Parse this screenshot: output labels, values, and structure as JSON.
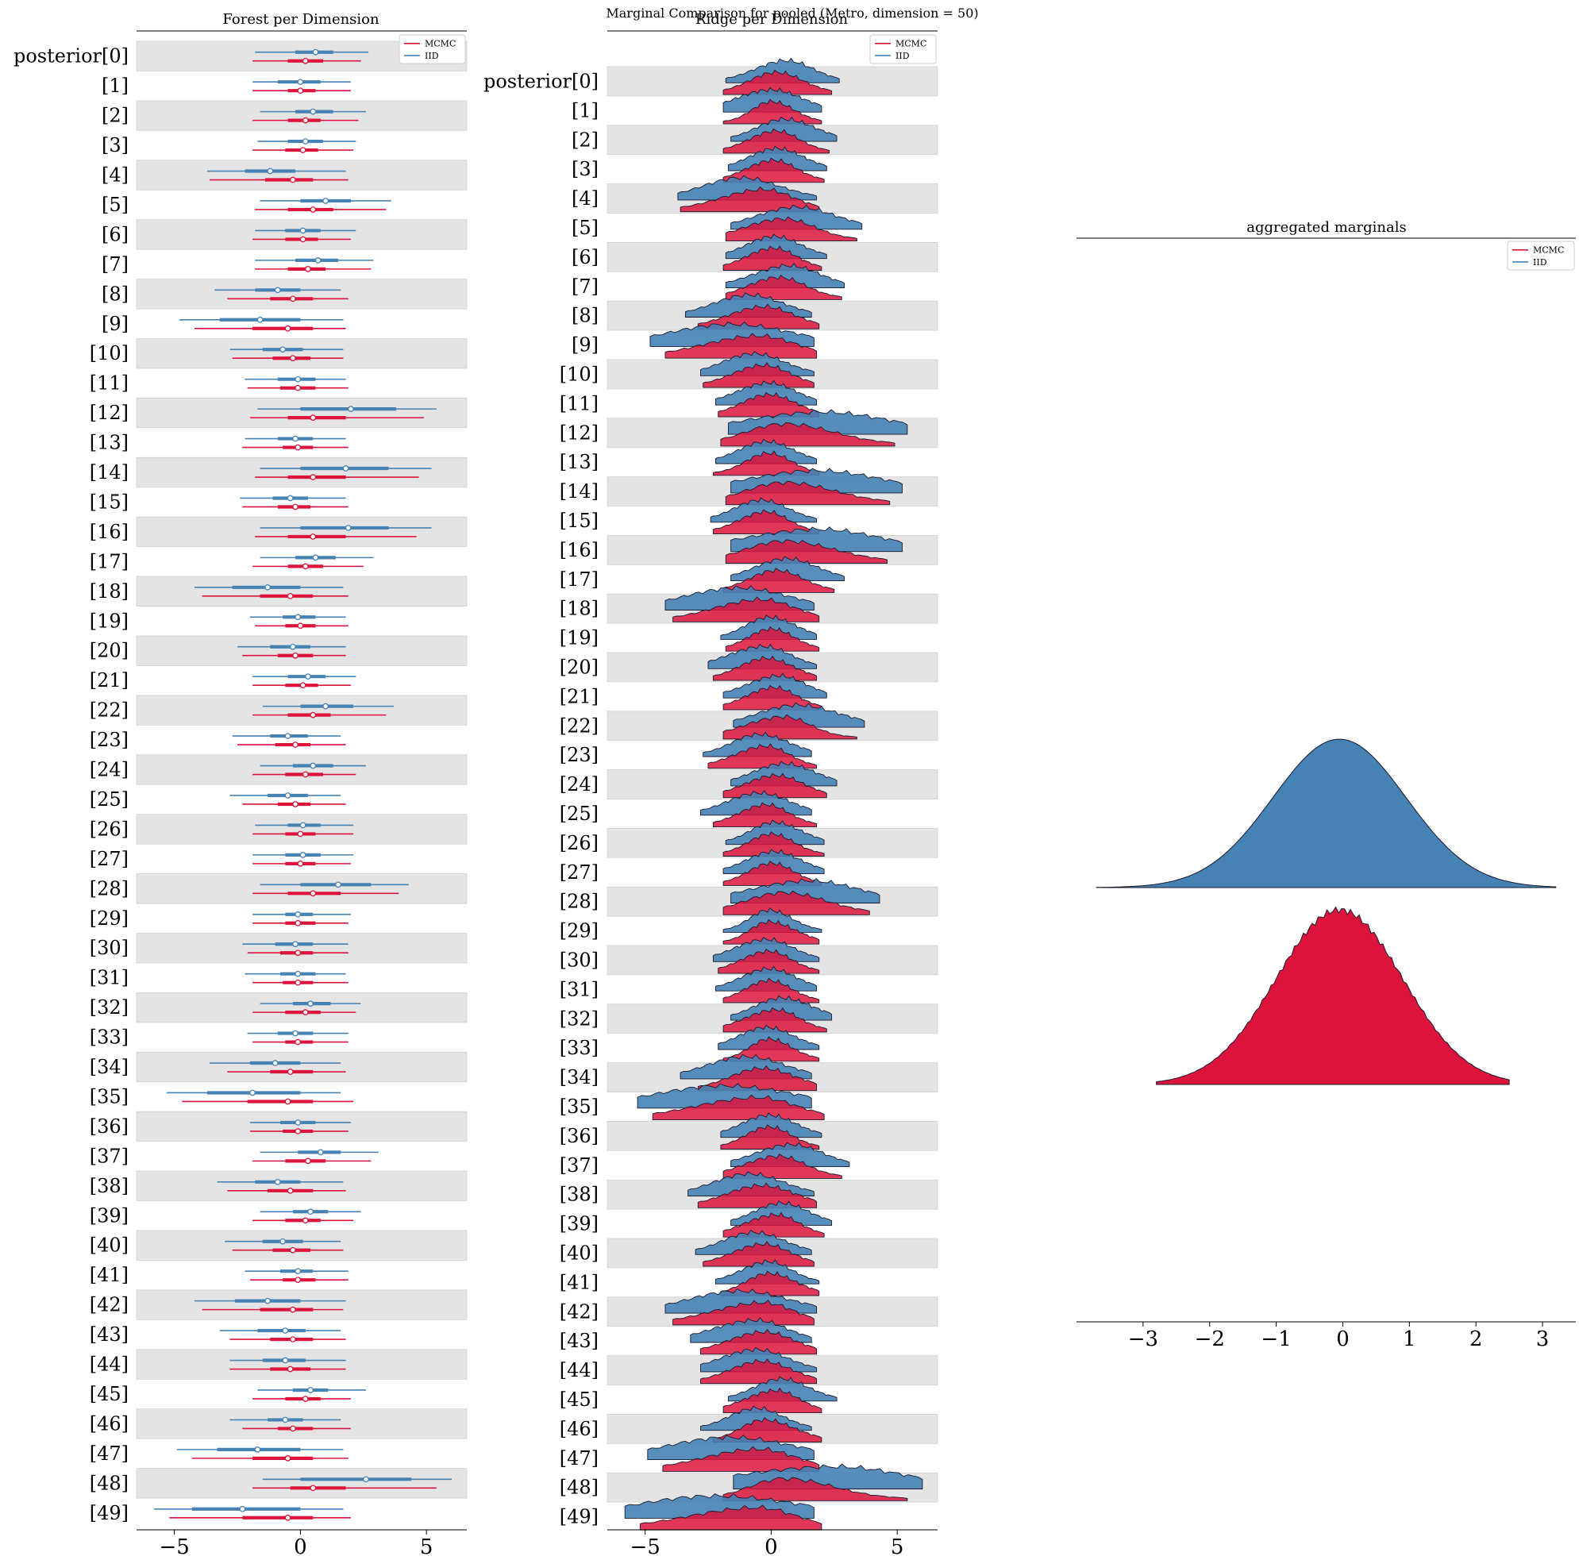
{
  "suptitle": "Marginal Comparison for pooled (Metro, dimension = 50)",
  "colors": {
    "mcmc": "#DC143C",
    "iid": "#4682B4",
    "band": "#E4E4E4"
  },
  "chart_data": [
    {
      "type": "forest",
      "title": "Forest per Dimension",
      "xlim": [
        -6.5,
        6.6
      ],
      "xticks": [
        -5,
        0,
        5
      ],
      "xtick_labels": [
        "−5",
        "0",
        "5"
      ],
      "legend": {
        "placement": "top-right",
        "entries": [
          "MCMC",
          "IID"
        ]
      },
      "row_labels": [
        "posterior[0]",
        "[1]",
        "[2]",
        "[3]",
        "[4]",
        "[5]",
        "[6]",
        "[7]",
        "[8]",
        "[9]",
        "[10]",
        "[11]",
        "[12]",
        "[13]",
        "[14]",
        "[15]",
        "[16]",
        "[17]",
        "[18]",
        "[19]",
        "[20]",
        "[21]",
        "[22]",
        "[23]",
        "[24]",
        "[25]",
        "[26]",
        "[27]",
        "[28]",
        "[29]",
        "[30]",
        "[31]",
        "[32]",
        "[33]",
        "[34]",
        "[35]",
        "[36]",
        "[37]",
        "[38]",
        "[39]",
        "[40]",
        "[41]",
        "[42]",
        "[43]",
        "[44]",
        "[45]",
        "[46]",
        "[47]",
        "[48]",
        "[49]"
      ],
      "series": [
        {
          "name": "IID",
          "lo": [
            -1.8,
            -1.9,
            -1.6,
            -1.7,
            -3.7,
            -1.6,
            -1.8,
            -1.8,
            -3.4,
            -4.8,
            -2.8,
            -2.2,
            -1.7,
            -2.2,
            -1.6,
            -2.4,
            -1.6,
            -1.6,
            -4.2,
            -2.0,
            -2.5,
            -1.9,
            -1.5,
            -2.7,
            -1.6,
            -2.8,
            -1.8,
            -1.9,
            -1.6,
            -1.9,
            -2.3,
            -2.2,
            -1.6,
            -2.1,
            -3.6,
            -5.3,
            -2.0,
            -1.6,
            -3.3,
            -1.6,
            -3.0,
            -2.2,
            -4.2,
            -3.2,
            -2.8,
            -1.7,
            -2.8,
            -4.9,
            -1.5,
            -5.8
          ],
          "q1": [
            -0.2,
            -0.9,
            -0.2,
            -0.5,
            -2.2,
            0.0,
            -0.6,
            -0.2,
            -1.8,
            -3.2,
            -1.5,
            -0.9,
            0.0,
            -0.9,
            0.0,
            -1.1,
            0.0,
            -0.2,
            -2.7,
            -0.7,
            -1.2,
            -0.5,
            0.0,
            -1.2,
            -0.3,
            -1.3,
            -0.5,
            -0.6,
            0.0,
            -0.6,
            -1.0,
            -0.8,
            -0.3,
            -0.9,
            -2.0,
            -3.7,
            -0.8,
            -0.1,
            -1.8,
            -0.3,
            -1.5,
            -0.8,
            -2.6,
            -1.7,
            -1.5,
            -0.3,
            -1.3,
            -3.3,
            0.0,
            -4.3
          ],
          "med": [
            0.6,
            0.0,
            0.5,
            0.2,
            -1.2,
            1.0,
            0.1,
            0.7,
            -0.9,
            -1.6,
            -0.7,
            -0.1,
            2.0,
            -0.2,
            1.8,
            -0.4,
            1.9,
            0.6,
            -1.3,
            -0.1,
            -0.3,
            0.3,
            1.0,
            -0.5,
            0.5,
            -0.5,
            0.1,
            0.1,
            1.5,
            -0.1,
            -0.2,
            -0.1,
            0.4,
            -0.2,
            -1.0,
            -1.9,
            -0.1,
            0.8,
            -0.9,
            0.4,
            -0.7,
            -0.1,
            -1.3,
            -0.6,
            -0.6,
            0.4,
            -0.6,
            -1.7,
            2.6,
            -2.3
          ],
          "q3": [
            1.3,
            0.8,
            1.3,
            0.9,
            -0.2,
            2.0,
            0.8,
            1.5,
            0.0,
            0.0,
            0.1,
            0.6,
            3.8,
            0.5,
            3.5,
            0.3,
            3.5,
            1.4,
            0.0,
            0.6,
            0.4,
            1.0,
            2.1,
            0.3,
            1.3,
            0.3,
            0.8,
            0.8,
            2.8,
            0.5,
            0.5,
            0.6,
            1.2,
            0.5,
            0.0,
            0.0,
            0.6,
            1.6,
            0.0,
            1.1,
            0.1,
            0.5,
            0.0,
            0.2,
            0.2,
            1.1,
            0.1,
            0.0,
            4.4,
            0.0
          ],
          "hi": [
            2.7,
            2.0,
            2.6,
            2.2,
            1.8,
            3.6,
            2.2,
            2.9,
            1.6,
            1.7,
            1.7,
            1.8,
            5.4,
            1.8,
            5.2,
            1.8,
            5.2,
            2.9,
            1.7,
            1.8,
            1.8,
            2.2,
            3.7,
            1.6,
            2.6,
            1.6,
            2.1,
            2.1,
            4.3,
            2.0,
            1.9,
            1.8,
            2.4,
            1.9,
            1.6,
            1.6,
            2.0,
            3.1,
            1.7,
            2.4,
            1.6,
            1.9,
            1.8,
            1.6,
            1.8,
            2.6,
            1.6,
            1.7,
            6.0,
            1.7
          ]
        },
        {
          "name": "MCMC",
          "lo": [
            -1.9,
            -1.9,
            -1.9,
            -1.9,
            -3.6,
            -1.8,
            -1.9,
            -1.8,
            -2.9,
            -4.2,
            -2.7,
            -2.1,
            -2.0,
            -2.3,
            -1.8,
            -2.3,
            -1.8,
            -1.9,
            -3.9,
            -1.8,
            -2.3,
            -1.9,
            -1.9,
            -2.5,
            -1.9,
            -2.3,
            -1.9,
            -1.9,
            -1.9,
            -1.9,
            -2.1,
            -1.9,
            -1.9,
            -1.9,
            -2.9,
            -4.7,
            -2.0,
            -1.9,
            -2.9,
            -1.9,
            -2.7,
            -2.0,
            -3.9,
            -2.8,
            -2.8,
            -1.9,
            -2.3,
            -4.3,
            -1.9,
            -5.2
          ],
          "q1": [
            -0.5,
            -0.5,
            -0.5,
            -0.6,
            -1.4,
            -0.5,
            -0.6,
            -0.5,
            -1.2,
            -1.9,
            -1.1,
            -0.8,
            -0.5,
            -0.7,
            -0.5,
            -0.9,
            -0.5,
            -0.5,
            -1.6,
            -0.6,
            -0.9,
            -0.6,
            -0.5,
            -1.0,
            -0.6,
            -0.9,
            -0.6,
            -0.6,
            -0.5,
            -0.6,
            -0.8,
            -0.7,
            -0.6,
            -0.6,
            -1.2,
            -2.1,
            -0.7,
            -0.6,
            -1.3,
            -0.6,
            -1.1,
            -0.7,
            -1.6,
            -1.2,
            -1.2,
            -0.6,
            -0.9,
            -1.9,
            -0.4,
            -2.3
          ],
          "med": [
            0.2,
            0.0,
            0.2,
            0.1,
            -0.3,
            0.5,
            0.1,
            0.3,
            -0.3,
            -0.5,
            -0.3,
            -0.1,
            0.5,
            -0.1,
            0.5,
            -0.2,
            0.5,
            0.2,
            -0.4,
            0.0,
            -0.2,
            0.1,
            0.5,
            -0.2,
            0.2,
            -0.2,
            0.0,
            0.0,
            0.5,
            -0.1,
            -0.1,
            -0.1,
            0.2,
            -0.1,
            -0.4,
            -0.5,
            -0.1,
            0.3,
            -0.4,
            0.2,
            -0.3,
            -0.1,
            -0.3,
            -0.3,
            -0.4,
            0.2,
            -0.3,
            -0.5,
            0.5,
            -0.5
          ],
          "q3": [
            0.9,
            0.6,
            0.8,
            0.7,
            0.5,
            1.3,
            0.7,
            1.0,
            0.5,
            0.5,
            0.4,
            0.6,
            1.8,
            0.5,
            1.8,
            0.4,
            1.8,
            0.9,
            0.5,
            0.6,
            0.5,
            0.7,
            1.2,
            0.4,
            0.9,
            0.4,
            0.6,
            0.6,
            1.6,
            0.6,
            0.5,
            0.5,
            0.8,
            0.5,
            0.5,
            0.5,
            0.5,
            1.0,
            0.5,
            0.8,
            0.4,
            0.6,
            0.5,
            0.5,
            0.4,
            0.8,
            0.5,
            0.5,
            1.8,
            0.5
          ],
          "hi": [
            2.4,
            2.0,
            2.3,
            2.1,
            1.9,
            3.4,
            2.0,
            2.8,
            1.9,
            1.8,
            1.7,
            1.9,
            4.9,
            1.9,
            4.7,
            1.9,
            4.6,
            2.5,
            1.9,
            1.9,
            1.8,
            2.0,
            3.4,
            1.8,
            2.2,
            1.8,
            2.1,
            2.0,
            3.9,
            1.9,
            1.9,
            1.9,
            2.2,
            1.9,
            1.8,
            2.1,
            1.9,
            2.8,
            1.8,
            2.1,
            1.7,
            1.9,
            1.7,
            1.8,
            1.8,
            2.0,
            2.0,
            1.9,
            5.4,
            2.0
          ]
        }
      ]
    },
    {
      "type": "ridge",
      "title": "Ridge per Dimension",
      "xlim": [
        -6.5,
        6.6
      ],
      "xticks": [
        -5,
        0,
        5
      ],
      "xtick_labels": [
        "−5",
        "0",
        "5"
      ],
      "legend": {
        "placement": "top-right",
        "entries": [
          "MCMC",
          "IID"
        ]
      },
      "row_labels": [
        "posterior[0]",
        "[1]",
        "[2]",
        "[3]",
        "[4]",
        "[5]",
        "[6]",
        "[7]",
        "[8]",
        "[9]",
        "[10]",
        "[11]",
        "[12]",
        "[13]",
        "[14]",
        "[15]",
        "[16]",
        "[17]",
        "[18]",
        "[19]",
        "[20]",
        "[21]",
        "[22]",
        "[23]",
        "[24]",
        "[25]",
        "[26]",
        "[27]",
        "[28]",
        "[29]",
        "[30]",
        "[31]",
        "[32]",
        "[33]",
        "[34]",
        "[35]",
        "[36]",
        "[37]",
        "[38]",
        "[39]",
        "[40]",
        "[41]",
        "[42]",
        "[43]",
        "[44]",
        "[45]",
        "[46]",
        "[47]",
        "[48]",
        "[49]"
      ],
      "note": "Densities per row reuse the forest-plot intervals (range lo..hi, mode near median)."
    },
    {
      "type": "area",
      "title": "aggregated marginals",
      "xlim": [
        -4.0,
        3.5
      ],
      "xticks": [
        -3,
        -2,
        -1,
        0,
        1,
        2,
        3
      ],
      "xtick_labels": [
        "−3",
        "−2",
        "−1",
        "0",
        "1",
        "2",
        "3"
      ],
      "legend": {
        "placement": "top-right",
        "entries": [
          "MCMC",
          "IID"
        ]
      },
      "series": [
        {
          "name": "IID",
          "range": [
            -3.7,
            3.2
          ],
          "mode": -0.05,
          "sd": 1.0
        },
        {
          "name": "MCMC",
          "range": [
            -2.8,
            2.5
          ],
          "mode": -0.05,
          "sd": 0.95
        }
      ]
    }
  ]
}
